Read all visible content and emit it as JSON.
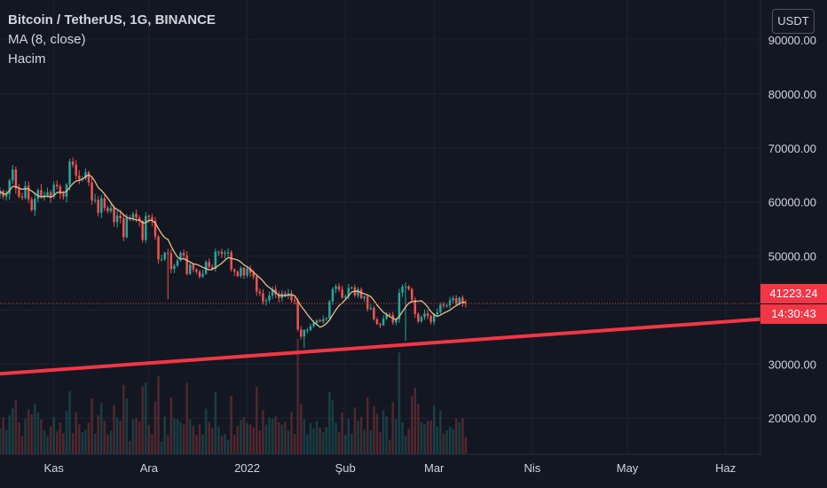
{
  "legend": {
    "title": "Bitcoin / TetherUS, 1G, BINANCE",
    "indicator": "MA (8, close)",
    "volume": "Hacim"
  },
  "currency_button": "USDT",
  "last_price": {
    "value": 41223.24,
    "label": "41223.24",
    "countdown": "14:30:43"
  },
  "colors": {
    "background": "#131722",
    "up": "#26a69a",
    "down": "#ef5350",
    "ma": "#e2c08d",
    "trendline": "#f23645",
    "axis_text": "#d1d4dc"
  },
  "chart_data": {
    "type": "candlestick",
    "title": "Bitcoin / TetherUS, 1G, BINANCE",
    "ylabel": "USDT",
    "y_ticks": [
      20000,
      30000,
      40000,
      50000,
      60000,
      70000,
      80000,
      90000
    ],
    "y_tick_labels": [
      "20000.00",
      "30000.00",
      "40000.00",
      "50000.00",
      "60000.00",
      "70000.00",
      "80000.00",
      "90000.00"
    ],
    "ylim": [
      13300,
      97400
    ],
    "x_ticks": [
      {
        "label": "Kas",
        "date": "2021-11-01"
      },
      {
        "label": "Ara",
        "date": "2021-12-01"
      },
      {
        "label": "2022",
        "date": "2022-01-01"
      },
      {
        "label": "Şub",
        "date": "2022-02-01"
      },
      {
        "label": "Mar",
        "date": "2022-03-01"
      },
      {
        "label": "Nis",
        "date": "2022-04-01"
      },
      {
        "label": "May",
        "date": "2022-05-01"
      },
      {
        "label": "Haz",
        "date": "2022-06-01"
      }
    ],
    "xlim": [
      "2021-10-15",
      "2022-06-12"
    ],
    "series": [
      {
        "name": "BTCUSDT",
        "start_date": "2021-10-15",
        "interval": "1D",
        "close": [
          62000,
          61000,
          61500,
          64000,
          66000,
          62500,
          61000,
          60800,
          63000,
          60500,
          58500,
          60600,
          62200,
          61000,
          61300,
          61800,
          61000,
          63200,
          62900,
          61500,
          61000,
          63200,
          67500,
          66900,
          64900,
          64200,
          64400,
          65500,
          63600,
          60300,
          60400,
          58000,
          60700,
          58900,
          58300,
          58900,
          56300,
          57500,
          57000,
          53500,
          57100,
          57000,
          57800,
          57100,
          56500,
          53000,
          57400,
          57200,
          56500,
          53600,
          49400,
          49400,
          50600,
          50500,
          47600,
          48200,
          49200,
          50600,
          50100,
          46700,
          48400,
          47500,
          47100,
          46200,
          46700,
          48900,
          48000,
          47600,
          50800,
          50800,
          50400,
          50600,
          50700,
          47500,
          47100,
          46300,
          47800,
          46400,
          47700,
          46900,
          46200,
          43400,
          43100,
          41600,
          41800,
          42700,
          43900,
          43000,
          42200,
          43100,
          42600,
          43100,
          41800,
          41700,
          36400,
          35100,
          36300,
          36300,
          37000,
          37600,
          38100,
          37900,
          38300,
          38500,
          41600,
          43900,
          44400,
          43800,
          42300,
          42500,
          44100,
          44200,
          42700,
          43800,
          42200,
          42500,
          40200,
          40400,
          38300,
          37400,
          37200,
          38400,
          39200,
          39100,
          37700,
          38300,
          43200,
          44300,
          44400,
          43900,
          41900,
          39300,
          37900,
          38700,
          39400,
          38900,
          37800,
          39200,
          39600,
          41000,
          40800,
          40900,
          41800,
          42200,
          41100,
          42300,
          41300,
          41200
        ]
      },
      {
        "name": "MA (8, close)",
        "period": 8
      }
    ],
    "volume": {
      "name": "Hacim",
      "relative_scale": true
    },
    "trendline": {
      "name": "",
      "color": "#f23645",
      "points": [
        {
          "date": "2021-10-15",
          "price": 28200
        },
        {
          "date": "2022-06-12",
          "price": 38300
        }
      ]
    },
    "last_price_line": 41223.24
  }
}
